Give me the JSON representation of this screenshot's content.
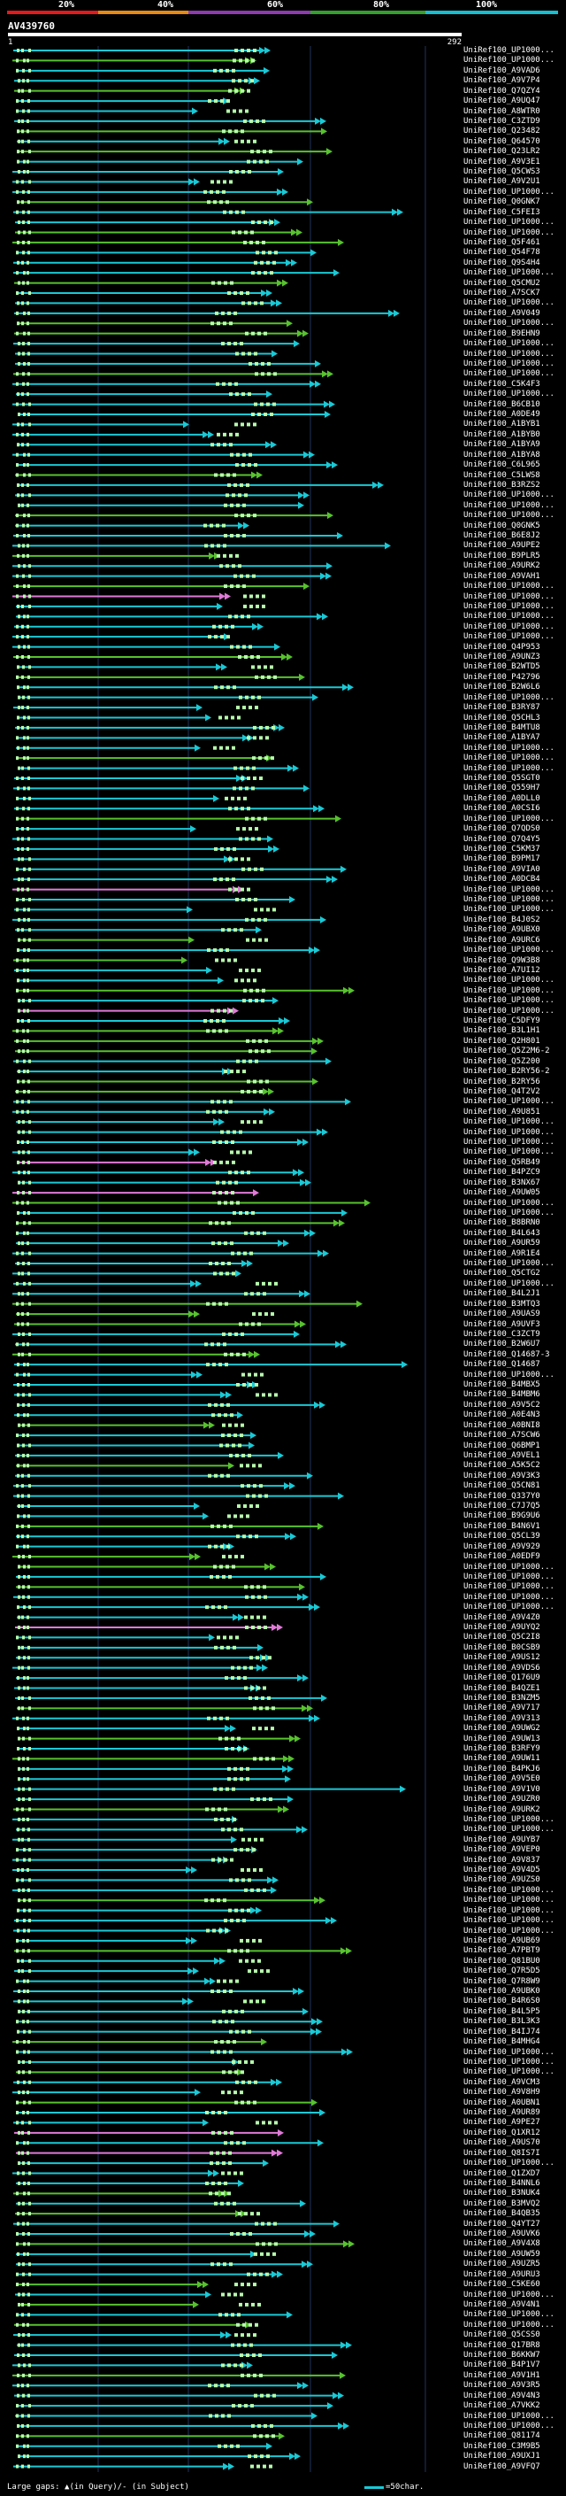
{
  "legend": {
    "ticks": [
      {
        "label": "20%",
        "color": "#e31a1c"
      },
      {
        "label": "40%",
        "color": "#e88a12"
      },
      {
        "label": "60%",
        "color": "#8e3bb0"
      },
      {
        "label": "80%",
        "color": "#33a02c"
      },
      {
        "label": "100%",
        "color": "#17becf"
      }
    ]
  },
  "query": {
    "id": "AV439760",
    "start": "1",
    "end": "292"
  },
  "colors": {
    "cyan": "#19c9d6",
    "green": "#57c22e",
    "pink": "#e07ad8",
    "segment": "#b7ffad",
    "gridline": "#21335a"
  },
  "hit_labels": [
    "UniRef100_UP1000...",
    "UniRef100_UP1000...",
    "UniRef100_A9VAD6",
    "UniRef100_A9V7P4",
    "UniRef100_Q7QZY4",
    "UniRef100_A9UQ47",
    "UniRef100_A8WTR0",
    "UniRef100_C3ZTD9",
    "UniRef100_Q23482",
    "UniRef100_Q64570",
    "UniRef100_Q23LR2",
    "UniRef100_A9V3E1",
    "UniRef100_Q5CWS3",
    "UniRef100_A9V2U1",
    "UniRef100_UP1000...",
    "UniRef100_Q0GNK7",
    "UniRef100_C5FEI3",
    "UniRef100_UP1000...",
    "UniRef100_UP1000...",
    "UniRef100_Q5F461",
    "UniRef100_Q54F78",
    "UniRef100_Q9S4H4",
    "UniRef100_UP1000...",
    "UniRef100_Q5CMU2",
    "UniRef100_A7SCK7",
    "UniRef100_UP1000...",
    "UniRef100_A9V049",
    "UniRef100_UP1000...",
    "UniRef100_B9EHN9",
    "UniRef100_UP1000...",
    "UniRef100_UP1000...",
    "UniRef100_UP1000...",
    "UniRef100_UP1000...",
    "UniRef100_C5K4F3",
    "UniRef100_UP1000...",
    "UniRef100_B6CB10",
    "UniRef100_A0DE49",
    "UniRef100_A1BYB1",
    "UniRef100_A1BYB0",
    "UniRef100_A1BYA9",
    "UniRef100_A1BYA8",
    "UniRef100_C6L965",
    "UniRef100_C5LWS8",
    "UniRef100_B3RZS2",
    "UniRef100_UP1000...",
    "UniRef100_UP1000...",
    "UniRef100_UP1000...",
    "UniRef100_Q0GNK5",
    "UniRef100_B6E8J2",
    "UniRef100_A9UPE2",
    "UniRef100_B9PLR5",
    "UniRef100_A9URK2",
    "UniRef100_A9VAH1",
    "UniRef100_UP1000...",
    "UniRef100_UP1000...",
    "UniRef100_UP1000...",
    "UniRef100_UP1000...",
    "UniRef100_UP1000...",
    "UniRef100_UP1000...",
    "UniRef100_Q4P953",
    "UniRef100_A9UNZ3",
    "UniRef100_B2WTD5",
    "UniRef100_P42796",
    "UniRef100_B2W6L6",
    "UniRef100_UP1000...",
    "UniRef100_B3RY87",
    "UniRef100_Q5CHL3",
    "UniRef100_B4MTU8",
    "UniRef100_A1BYA7",
    "UniRef100_UP1000...",
    "UniRef100_UP1000...",
    "UniRef100_UP1000...",
    "UniRef100_Q5SGT0",
    "UniRef100_Q559H7",
    "UniRef100_A0DLL0",
    "UniRef100_A0CSI6",
    "UniRef100_UP1000...",
    "UniRef100_Q7QDS0",
    "UniRef100_Q7Q4Y5",
    "UniRef100_C5KM37",
    "UniRef100_B9PM17",
    "UniRef100_A9VIA0",
    "UniRef100_A0DCB4",
    "UniRef100_UP1000...",
    "UniRef100_UP1000...",
    "UniRef100_UP1000...",
    "UniRef100_B4J0S2",
    "UniRef100_A9UBX0",
    "UniRef100_A9URC6",
    "UniRef100_UP1000...",
    "UniRef100_Q9W3B8",
    "UniRef100_A7UI12",
    "UniRef100_UP1000...",
    "UniRef100_UP1000...",
    "UniRef100_UP1000...",
    "UniRef100_UP1000...",
    "UniRef100_C5DFY9",
    "UniRef100_B3L1H1",
    "UniRef100_Q2H801",
    "UniRef100_Q5Z2M6-2",
    "UniRef100_Q5Z200",
    "UniRef100_B2RY56-2",
    "UniRef100_B2RY56",
    "UniRef100_Q4T2V2",
    "UniRef100_UP1000...",
    "UniRef100_A9U851",
    "UniRef100_UP1000...",
    "UniRef100_UP1000...",
    "UniRef100_UP1000...",
    "UniRef100_UP1000...",
    "UniRef100_Q5RB49",
    "UniRef100_B4PZC9",
    "UniRef100_B3NX67",
    "UniRef100_A9UW05",
    "UniRef100_UP1000...",
    "UniRef100_UP1000...",
    "UniRef100_B8BRN0",
    "UniRef100_B4L643",
    "UniRef100_A9UR59",
    "UniRef100_A9R1E4",
    "UniRef100_UP1000...",
    "UniRef100_Q5CTG2",
    "UniRef100_UP1000...",
    "UniRef100_B4L2J1",
    "UniRef100_B3MTQ3",
    "UniRef100_A9UAS9",
    "UniRef100_A9UVF3",
    "UniRef100_C3ZCT9",
    "UniRef100_B2W6U7",
    "UniRef100_Q14687-3",
    "UniRef100_Q14687",
    "UniRef100_UP1000...",
    "UniRef100_B4MBX5",
    "UniRef100_B4MBM6",
    "UniRef100_A9V5C2",
    "UniRef100_A0E4N3",
    "UniRef100_A0BNI8",
    "UniRef100_A7SCW6",
    "UniRef100_Q6BMP1",
    "UniRef100_A9VEL1",
    "UniRef100_A5K5C2",
    "UniRef100_A9V3K3",
    "UniRef100_Q5CN81",
    "UniRef100_Q337Y0",
    "UniRef100_C7J7Q5",
    "UniRef100_B9G9U6",
    "UniRef100_B4N6V1",
    "UniRef100_Q5CL39",
    "UniRef100_A9V929",
    "UniRef100_A0EDF9",
    "UniRef100_UP1000...",
    "UniRef100_UP1000...",
    "UniRef100_UP1000...",
    "UniRef100_UP1000...",
    "UniRef100_UP1000...",
    "UniRef100_A9V4Z0",
    "UniRef100_A9UYQ2",
    "UniRef100_Q5C2I8",
    "UniRef100_B0CSB9",
    "UniRef100_A9US12",
    "UniRef100_A9VDS6",
    "UniRef100_Q176U9",
    "UniRef100_B4QZE1",
    "UniRef100_B3NZM5",
    "UniRef100_A9V717",
    "UniRef100_A9V313",
    "UniRef100_A9UWG2",
    "UniRef100_A9UW13",
    "UniRef100_B3RFY9",
    "UniRef100_A9UW11",
    "UniRef100_B4PKJ6",
    "UniRef100_A9V5E0",
    "UniRef100_A9V1V0",
    "UniRef100_A9UZR0",
    "UniRef100_A9URK2",
    "UniRef100_UP1000...",
    "UniRef100_UP1000...",
    "UniRef100_A9UYB7",
    "UniRef100_A9VEP0",
    "UniRef100_A9V837",
    "UniRef100_A9V4D5",
    "UniRef100_A9UZS0",
    "UniRef100_UP1000...",
    "UniRef100_UP1000...",
    "UniRef100_UP1000...",
    "UniRef100_UP1000...",
    "UniRef100_UP1000...",
    "UniRef100_A9UB69",
    "UniRef100_A7PBT9",
    "UniRef100_Q81BU0",
    "UniRef100_Q7R5D5",
    "UniRef100_Q7R8W9",
    "UniRef100_A9UBK0",
    "UniRef100_B4R6S0",
    "UniRef100_B4L5P5",
    "UniRef100_B3L3K3",
    "UniRef100_B4IJ74",
    "UniRef100_B4MHG4",
    "UniRef100_UP1000...",
    "UniRef100_UP1000...",
    "UniRef100_UP1000...",
    "UniRef100_A9VCM3",
    "UniRef100_A9V8H9",
    "UniRef100_A0UBN1",
    "UniRef100_A9UR89",
    "UniRef100_A9PE27",
    "UniRef100_Q1XR12",
    "UniRef100_A9US70",
    "UniRef100_Q8IS7I",
    "UniRef100_UP1000...",
    "UniRef100_Q1ZXD7",
    "UniRef100_B4NNL6",
    "UniRef100_B3NUK4",
    "UniRef100_B3MVQ2",
    "UniRef100_B4QB35",
    "UniRef100_Q4YT27",
    "UniRef100_A9UVK6",
    "UniRef100_A9V4X8",
    "UniRef100_A9UW59",
    "UniRef100_A9UZR5",
    "UniRef100_A9URU3",
    "UniRef100_C5KE60",
    "UniRef100_UP1000...",
    "UniRef100_A9V4N1",
    "UniRef100_UP1000...",
    "UniRef100_UP1000...",
    "UniRef100_Q5CSS0",
    "UniRef100_Q17BR8",
    "UniRef100_B6KKW7",
    "UniRef100_B4P1V7",
    "UniRef100_A9V1H1",
    "UniRef100_A9V3R5",
    "UniRef100_A9V4N3",
    "UniRef100_A7VKK2",
    "UniRef100_UP1000...",
    "UniRef100_UP1000...",
    "UniRef100_Q81174",
    "UniRef100_C3M9B5",
    "UniRef100_A9UXJ1",
    "UniRef100_A9VFQ7"
  ],
  "footer": {
    "gaps_text": "Large gaps: ▲(in Query)/- (in Subject)",
    "scale_text": "=50char."
  }
}
